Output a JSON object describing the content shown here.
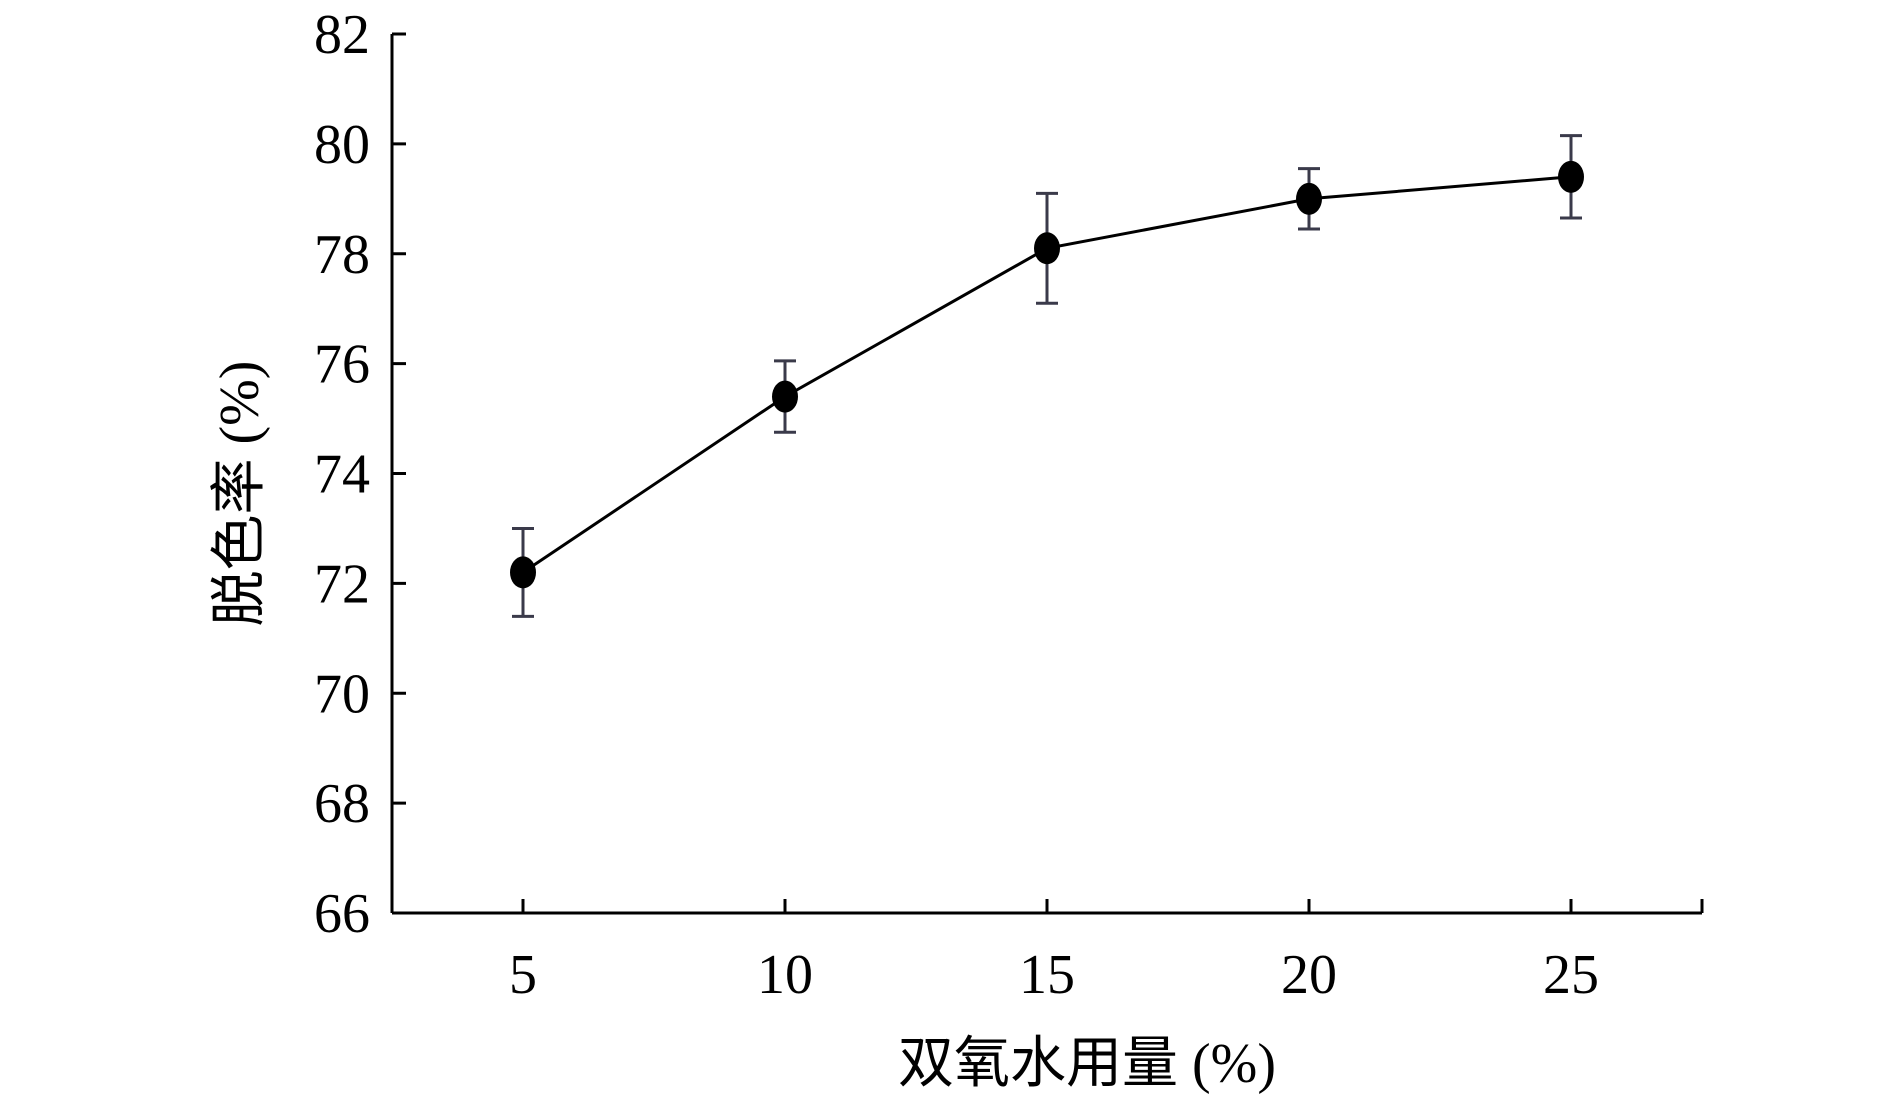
{
  "chart_data": {
    "type": "line",
    "xlabel": "双氧水用量 (%)",
    "ylabel": "脱色率 (%)",
    "x": [
      5,
      10,
      15,
      20,
      25
    ],
    "series": [
      {
        "values": [
          72.2,
          75.4,
          78.1,
          79.0,
          79.4
        ],
        "error": [
          0.8,
          0.65,
          1.0,
          0.55,
          0.75
        ]
      }
    ],
    "xlim": [
      2.5,
      27.5
    ],
    "ylim": [
      66,
      82
    ],
    "xticks": [
      5,
      10,
      15,
      20,
      25
    ],
    "xtick_labels": [
      "5",
      "10",
      "15",
      "20",
      "25"
    ],
    "yticks": [
      66,
      68,
      70,
      72,
      74,
      76,
      78,
      80,
      82
    ],
    "ytick_labels": [
      "66",
      "68",
      "70",
      "72",
      "74",
      "76",
      "78",
      "80",
      "82"
    ],
    "grid": false,
    "legend": "none",
    "colors": {
      "line": "#000000",
      "marker": "#000000",
      "errorbar": "#3a3a4a",
      "axis": "#000000"
    }
  }
}
